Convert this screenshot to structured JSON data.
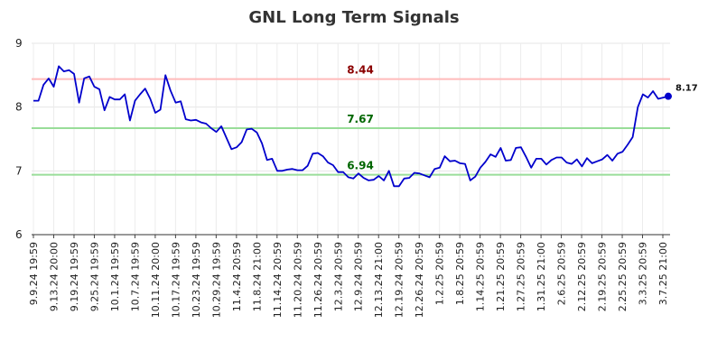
{
  "chart_data": {
    "type": "line",
    "title": "GNL Long Term Signals",
    "xlabel": "",
    "ylabel": "",
    "ylim": [
      6,
      9
    ],
    "yticks": [
      "6",
      "7",
      "8",
      "9"
    ],
    "grid": true,
    "x_tick_labels": [
      "9.9.24 19:59",
      "9.13.24 20:00",
      "9.19.24 19:59",
      "9.25.24 19:59",
      "10.1.24 19:59",
      "10.7.24 19:59",
      "10.11.24 20:00",
      "10.17.24 19:59",
      "10.23.24 19:59",
      "10.29.24 19:59",
      "11.4.24 20:59",
      "11.8.24 21:00",
      "11.14.24 20:59",
      "11.20.24 20:59",
      "11.26.24 20:59",
      "12.3.24 20:59",
      "12.9.24 20:59",
      "12.13.24 21:00",
      "12.19.24 20:59",
      "12.26.24 20:59",
      "1.2.25 20:59",
      "1.8.25 20:59",
      "1.14.25 20:59",
      "1.21.25 20:59",
      "1.27.25 20:59",
      "1.31.25 21:00",
      "2.6.25 20:59",
      "2.12.25 20:59",
      "2.19.25 20:59",
      "2.25.25 20:59",
      "3.3.25 20:59",
      "3.7.25 21:00"
    ],
    "series": [
      {
        "color": "#0000cc",
        "values": [
          8.1,
          8.1,
          8.35,
          8.45,
          8.32,
          8.64,
          8.56,
          8.58,
          8.52,
          8.07,
          8.45,
          8.48,
          8.32,
          8.28,
          7.95,
          8.16,
          8.12,
          8.12,
          8.2,
          7.79,
          8.1,
          8.2,
          8.29,
          8.13,
          7.91,
          7.96,
          8.5,
          8.26,
          8.07,
          8.09,
          7.81,
          7.79,
          7.8,
          7.76,
          7.74,
          7.67,
          7.61,
          7.7,
          7.52,
          7.34,
          7.37,
          7.45,
          7.65,
          7.66,
          7.6,
          7.43,
          7.17,
          7.19,
          7.0,
          7.0,
          7.02,
          7.03,
          7.01,
          7.01,
          7.08,
          7.27,
          7.28,
          7.23,
          7.13,
          7.09,
          6.98,
          6.98,
          6.9,
          6.88,
          6.96,
          6.89,
          6.85,
          6.86,
          6.92,
          6.85,
          7.0,
          6.76,
          6.76,
          6.88,
          6.89,
          6.97,
          6.96,
          6.93,
          6.9,
          7.03,
          7.05,
          7.23,
          7.15,
          7.16,
          7.12,
          7.11,
          6.85,
          6.91,
          7.05,
          7.14,
          7.26,
          7.22,
          7.36,
          7.16,
          7.17,
          7.36,
          7.37,
          7.22,
          7.05,
          7.19,
          7.19,
          7.1,
          7.17,
          7.21,
          7.21,
          7.13,
          7.11,
          7.18,
          7.07,
          7.2,
          7.12,
          7.15,
          7.18,
          7.25,
          7.16,
          7.27,
          7.3,
          7.41,
          7.53,
          8.0,
          8.2,
          8.15,
          8.25,
          8.13,
          8.15,
          8.17
        ]
      }
    ],
    "reference_lines": [
      {
        "value": 8.44,
        "label": "8.44",
        "line_color": "#ffbbbb",
        "label_color": "#8b0000"
      },
      {
        "value": 7.67,
        "label": "7.67",
        "line_color": "#99dd99",
        "label_color": "#006600"
      },
      {
        "value": 6.94,
        "label": "6.94",
        "line_color": "#99dd99",
        "label_color": "#006600"
      }
    ],
    "last_point_label": "8.17"
  }
}
